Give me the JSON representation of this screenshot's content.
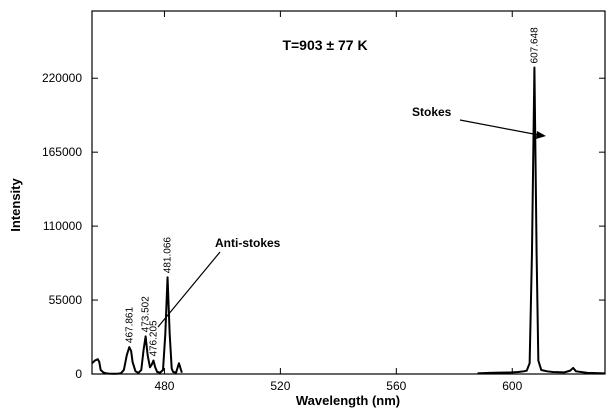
{
  "chart_data": {
    "type": "line",
    "title": "T=903 ± 77 K",
    "x_label": "Wavelength (nm)",
    "y_label": "Intensity",
    "x": [
      455,
      456,
      457,
      457.5,
      458,
      459,
      460,
      461,
      462,
      463,
      464,
      465,
      466,
      467,
      467.861,
      468.5,
      469,
      470,
      471,
      472,
      472.8,
      473.502,
      474.2,
      475,
      475.6,
      476.205,
      476.8,
      477.5,
      478.5,
      479.5,
      480.3,
      481.066,
      481.8,
      482.5,
      483,
      484,
      485,
      486,
      487,
      588,
      592,
      596,
      600,
      602,
      604,
      605,
      606,
      606.8,
      607.648,
      608.4,
      609,
      610,
      612,
      614,
      618,
      620,
      621,
      622,
      626,
      632
    ],
    "series": [
      {
        "name": "Intensity",
        "color": "#000000",
        "values": [
          8000,
          10000,
          11000,
          9000,
          3000,
          1000,
          500,
          300,
          200,
          200,
          300,
          600,
          3000,
          14000,
          20000,
          17000,
          9000,
          2000,
          800,
          3000,
          18000,
          28000,
          14000,
          5000,
          7000,
          10000,
          5000,
          1500,
          1000,
          3000,
          30000,
          72000,
          30000,
          4000,
          1500,
          1000,
          8000,
          1000,
          null,
          500,
          800,
          1000,
          1200,
          1500,
          2000,
          2500,
          8000,
          90000,
          228000,
          90000,
          10000,
          3000,
          2000,
          1500,
          1200,
          2500,
          4500,
          2000,
          800,
          500
        ]
      }
    ],
    "peaks": [
      {
        "x": 467.861,
        "label": "467.861"
      },
      {
        "x": 473.502,
        "label": "473.502"
      },
      {
        "x": 476.205,
        "label": "476.205"
      },
      {
        "x": 481.066,
        "label": "481.066"
      },
      {
        "x": 607.648,
        "label": "607.648"
      }
    ],
    "annotations": [
      "Anti-stokes",
      "Stokes"
    ],
    "xlim": [
      455,
      632
    ],
    "xticks": [
      480,
      520,
      560,
      600
    ],
    "ylim": [
      0,
      270000
    ],
    "yticks": [
      0,
      55000,
      110000,
      165000,
      220000
    ]
  }
}
